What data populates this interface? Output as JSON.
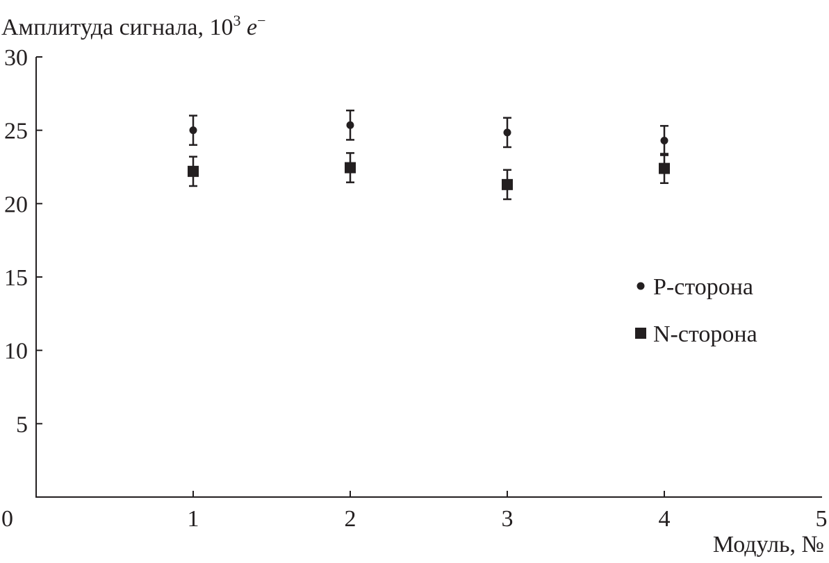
{
  "chart_data": {
    "type": "scatter",
    "title": "",
    "ylabel": "Амплитуда сигнала, 10",
    "ylabel_sup": "3",
    "ylabel_unit": "e",
    "ylabel_unit_sup": "−",
    "xlabel": "Модуль, №",
    "xlim": [
      0,
      5
    ],
    "ylim": [
      0,
      30
    ],
    "xticks": [
      "0",
      "1",
      "2",
      "3",
      "4",
      "5"
    ],
    "yticks": [
      "5",
      "10",
      "15",
      "20",
      "25",
      "30"
    ],
    "grid": false,
    "legend_position": "right",
    "series": [
      {
        "name": "P-сторона",
        "marker": "circle",
        "x": [
          1,
          2,
          3,
          4
        ],
        "y": [
          25.0,
          25.35,
          24.85,
          24.3
        ],
        "err": [
          1.0,
          1.0,
          1.0,
          1.0
        ]
      },
      {
        "name": "N-сторона",
        "marker": "square",
        "x": [
          1,
          2,
          3,
          4
        ],
        "y": [
          22.2,
          22.45,
          21.3,
          22.4
        ],
        "err": [
          1.0,
          1.0,
          1.0,
          1.0
        ]
      }
    ],
    "color": "#231f20"
  }
}
